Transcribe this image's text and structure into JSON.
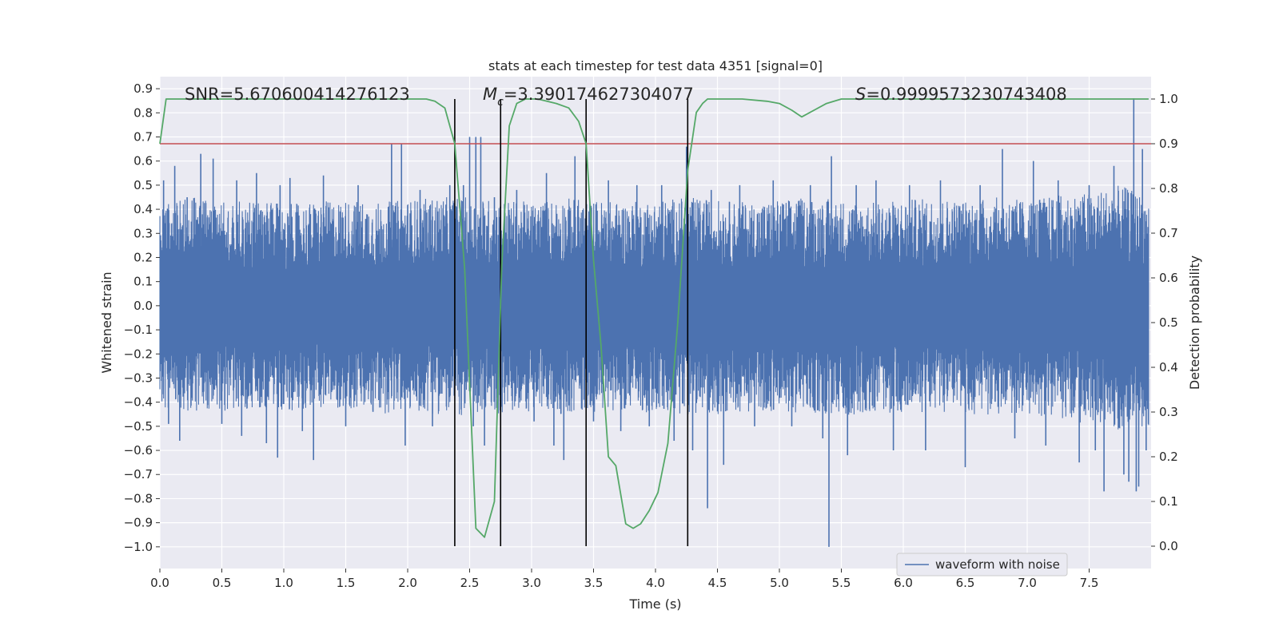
{
  "chart_data": {
    "type": "line",
    "title": "stats at each timestep for test data 4351 [signal=0]",
    "xlabel": "Time (s)",
    "ylabel": "Whitened strain",
    "y2label": "Detection probability",
    "xlim": [
      0.0,
      8.0
    ],
    "ylim": [
      -1.09,
      0.95
    ],
    "y2lim": [
      -0.05,
      1.05
    ],
    "x_ticks": [
      0.0,
      0.5,
      1.0,
      1.5,
      2.0,
      2.5,
      3.0,
      3.5,
      4.0,
      4.5,
      5.0,
      5.5,
      6.0,
      6.5,
      7.0,
      7.5
    ],
    "x_tick_labels": [
      "0.0",
      "0.5",
      "1.0",
      "1.5",
      "2.0",
      "2.5",
      "3.0",
      "3.5",
      "4.0",
      "4.5",
      "5.0",
      "5.5",
      "6.0",
      "6.5",
      "7.0",
      "7.5"
    ],
    "y_ticks": [
      0.9,
      0.8,
      0.7,
      0.6,
      0.5,
      0.4,
      0.3,
      0.2,
      0.1,
      0.0,
      -0.1,
      -0.2,
      -0.3,
      -0.4,
      -0.5,
      -0.6,
      -0.7,
      -0.8,
      -0.9,
      -1.0
    ],
    "y_tick_labels": [
      "0.9",
      "0.8",
      "0.7",
      "0.6",
      "0.5",
      "0.4",
      "0.3",
      "0.2",
      "0.1",
      "0.0",
      "−0.1",
      "−0.2",
      "−0.3",
      "−0.4",
      "−0.5",
      "−0.6",
      "−0.7",
      "−0.8",
      "−0.9",
      "−1.0"
    ],
    "y2_ticks": [
      1.0,
      0.9,
      0.8,
      0.7,
      0.6,
      0.5,
      0.4,
      0.3,
      0.2,
      0.1,
      0.0
    ],
    "y2_tick_labels": [
      "1.0",
      "0.9",
      "0.8",
      "0.7",
      "0.6",
      "0.5",
      "0.4",
      "0.3",
      "0.2",
      "0.1",
      "0.0"
    ],
    "annotations": {
      "snr": "SNR=5.670600414276123",
      "mc_symbol": "M",
      "mc_sub": "c",
      "mc_value": "=3.390174627304077",
      "s_symbol": "S",
      "s_value": "=0.9999573230743408"
    },
    "legend": {
      "label": "waveform with noise",
      "loc": "lower-right"
    },
    "threshold": {
      "y2": 0.9,
      "color": "#c44e52"
    },
    "vlines_x": [
      2.38,
      2.75,
      3.44,
      4.26
    ],
    "vline_y2_range": [
      0.0,
      1.0
    ],
    "series": [
      {
        "name": "waveform with noise",
        "axis": "y",
        "color": "#4c72b0",
        "envelope": [
          {
            "x": 0.0,
            "upper": 0.42,
            "lower": -0.42
          },
          {
            "x": 0.25,
            "upper": 0.45,
            "lower": -0.44
          },
          {
            "x": 0.5,
            "upper": 0.43,
            "lower": -0.45
          },
          {
            "x": 0.75,
            "upper": 0.44,
            "lower": -0.43
          },
          {
            "x": 1.0,
            "upper": 0.42,
            "lower": -0.44
          },
          {
            "x": 1.25,
            "upper": 0.43,
            "lower": -0.42
          },
          {
            "x": 1.5,
            "upper": 0.44,
            "lower": -0.43
          },
          {
            "x": 1.75,
            "upper": 0.43,
            "lower": -0.45
          },
          {
            "x": 2.0,
            "upper": 0.44,
            "lower": -0.44
          },
          {
            "x": 2.25,
            "upper": 0.45,
            "lower": -0.45
          },
          {
            "x": 2.5,
            "upper": 0.45,
            "lower": -0.46
          },
          {
            "x": 2.75,
            "upper": 0.44,
            "lower": -0.45
          },
          {
            "x": 3.0,
            "upper": 0.43,
            "lower": -0.44
          },
          {
            "x": 3.25,
            "upper": 0.45,
            "lower": -0.45
          },
          {
            "x": 3.5,
            "upper": 0.44,
            "lower": -0.44
          },
          {
            "x": 3.75,
            "upper": 0.43,
            "lower": -0.43
          },
          {
            "x": 4.0,
            "upper": 0.44,
            "lower": -0.45
          },
          {
            "x": 4.25,
            "upper": 0.45,
            "lower": -0.45
          },
          {
            "x": 4.5,
            "upper": 0.44,
            "lower": -0.45
          },
          {
            "x": 4.75,
            "upper": 0.43,
            "lower": -0.44
          },
          {
            "x": 5.0,
            "upper": 0.44,
            "lower": -0.44
          },
          {
            "x": 5.25,
            "upper": 0.45,
            "lower": -0.45
          },
          {
            "x": 5.5,
            "upper": 0.44,
            "lower": -0.46
          },
          {
            "x": 5.75,
            "upper": 0.43,
            "lower": -0.44
          },
          {
            "x": 6.0,
            "upper": 0.44,
            "lower": -0.45
          },
          {
            "x": 6.25,
            "upper": 0.45,
            "lower": -0.44
          },
          {
            "x": 6.5,
            "upper": 0.44,
            "lower": -0.45
          },
          {
            "x": 6.75,
            "upper": 0.45,
            "lower": -0.46
          },
          {
            "x": 7.0,
            "upper": 0.44,
            "lower": -0.45
          },
          {
            "x": 7.25,
            "upper": 0.46,
            "lower": -0.47
          },
          {
            "x": 7.5,
            "upper": 0.47,
            "lower": -0.49
          },
          {
            "x": 7.75,
            "upper": 0.5,
            "lower": -0.52
          },
          {
            "x": 7.98,
            "upper": 0.45,
            "lower": -0.5
          }
        ],
        "spikes": [
          {
            "x": 0.03,
            "y": 0.52
          },
          {
            "x": 0.07,
            "y": -0.49
          },
          {
            "x": 0.12,
            "y": 0.58
          },
          {
            "x": 0.16,
            "y": -0.56
          },
          {
            "x": 0.22,
            "y": 0.45
          },
          {
            "x": 0.33,
            "y": 0.63
          },
          {
            "x": 0.43,
            "y": 0.61
          },
          {
            "x": 0.5,
            "y": -0.49
          },
          {
            "x": 0.62,
            "y": 0.52
          },
          {
            "x": 0.66,
            "y": -0.54
          },
          {
            "x": 0.78,
            "y": 0.55
          },
          {
            "x": 0.86,
            "y": -0.57
          },
          {
            "x": 0.95,
            "y": -0.63
          },
          {
            "x": 0.97,
            "y": 0.5
          },
          {
            "x": 1.05,
            "y": 0.53
          },
          {
            "x": 1.15,
            "y": -0.52
          },
          {
            "x": 1.24,
            "y": -0.64
          },
          {
            "x": 1.32,
            "y": 0.54
          },
          {
            "x": 1.5,
            "y": -0.5
          },
          {
            "x": 1.6,
            "y": 0.5
          },
          {
            "x": 1.72,
            "y": -0.44
          },
          {
            "x": 1.87,
            "y": 0.67
          },
          {
            "x": 1.95,
            "y": 0.67
          },
          {
            "x": 1.98,
            "y": -0.58
          },
          {
            "x": 2.1,
            "y": 0.48
          },
          {
            "x": 2.2,
            "y": -0.5
          },
          {
            "x": 2.34,
            "y": 0.5
          },
          {
            "x": 2.45,
            "y": 0.5
          },
          {
            "x": 2.5,
            "y": 0.7
          },
          {
            "x": 2.53,
            "y": -0.5
          },
          {
            "x": 2.55,
            "y": 0.7
          },
          {
            "x": 2.59,
            "y": 0.7
          },
          {
            "x": 2.62,
            "y": -0.58
          },
          {
            "x": 2.7,
            "y": 0.45
          },
          {
            "x": 2.88,
            "y": 0.48
          },
          {
            "x": 3.02,
            "y": -0.48
          },
          {
            "x": 3.12,
            "y": 0.55
          },
          {
            "x": 3.18,
            "y": -0.58
          },
          {
            "x": 3.26,
            "y": -0.64
          },
          {
            "x": 3.35,
            "y": 0.62
          },
          {
            "x": 3.5,
            "y": -0.48
          },
          {
            "x": 3.62,
            "y": 0.52
          },
          {
            "x": 3.72,
            "y": -0.52
          },
          {
            "x": 3.85,
            "y": 0.5
          },
          {
            "x": 3.95,
            "y": -0.5
          },
          {
            "x": 4.05,
            "y": 0.5
          },
          {
            "x": 4.15,
            "y": -0.56
          },
          {
            "x": 4.25,
            "y": 0.66
          },
          {
            "x": 4.3,
            "y": -0.6
          },
          {
            "x": 4.42,
            "y": -0.84
          },
          {
            "x": 4.45,
            "y": 0.48
          },
          {
            "x": 4.55,
            "y": -0.66
          },
          {
            "x": 4.68,
            "y": 0.5
          },
          {
            "x": 4.8,
            "y": -0.5
          },
          {
            "x": 4.95,
            "y": 0.52
          },
          {
            "x": 5.1,
            "y": -0.5
          },
          {
            "x": 5.25,
            "y": 0.5
          },
          {
            "x": 5.35,
            "y": -0.55
          },
          {
            "x": 5.4,
            "y": -1.0
          },
          {
            "x": 5.42,
            "y": 0.62
          },
          {
            "x": 5.55,
            "y": -0.62
          },
          {
            "x": 5.62,
            "y": 0.5
          },
          {
            "x": 5.78,
            "y": 0.52
          },
          {
            "x": 5.92,
            "y": -0.6
          },
          {
            "x": 6.05,
            "y": 0.5
          },
          {
            "x": 6.18,
            "y": -0.6
          },
          {
            "x": 6.3,
            "y": 0.52
          },
          {
            "x": 6.5,
            "y": -0.67
          },
          {
            "x": 6.62,
            "y": 0.5
          },
          {
            "x": 6.8,
            "y": 0.65
          },
          {
            "x": 6.9,
            "y": -0.55
          },
          {
            "x": 7.05,
            "y": 0.6
          },
          {
            "x": 7.15,
            "y": -0.58
          },
          {
            "x": 7.25,
            "y": 0.52
          },
          {
            "x": 7.42,
            "y": -0.65
          },
          {
            "x": 7.5,
            "y": 0.5
          },
          {
            "x": 7.55,
            "y": -0.6
          },
          {
            "x": 7.62,
            "y": -0.77
          },
          {
            "x": 7.7,
            "y": 0.58
          },
          {
            "x": 7.78,
            "y": -0.7
          },
          {
            "x": 7.82,
            "y": -0.73
          },
          {
            "x": 7.86,
            "y": 0.86
          },
          {
            "x": 7.88,
            "y": -0.77
          },
          {
            "x": 7.9,
            "y": -0.75
          },
          {
            "x": 7.93,
            "y": 0.65
          },
          {
            "x": 7.96,
            "y": -0.6
          }
        ]
      },
      {
        "name": "detection probability",
        "axis": "y2",
        "color": "#55a868",
        "x": [
          0.0,
          0.05,
          0.1,
          0.5,
          1.0,
          1.5,
          2.0,
          2.15,
          2.22,
          2.3,
          2.38,
          2.46,
          2.55,
          2.62,
          2.7,
          2.76,
          2.82,
          2.88,
          2.95,
          3.05,
          3.2,
          3.3,
          3.38,
          3.44,
          3.5,
          3.56,
          3.62,
          3.68,
          3.76,
          3.82,
          3.88,
          3.95,
          4.02,
          4.1,
          4.18,
          4.26,
          4.33,
          4.38,
          4.42,
          4.5,
          4.7,
          4.9,
          5.0,
          5.1,
          5.18,
          5.28,
          5.38,
          5.5,
          5.7,
          6.0,
          7.0,
          7.98
        ],
        "y": [
          0.9,
          1.0,
          1.0,
          1.0,
          1.0,
          1.0,
          1.0,
          1.0,
          0.995,
          0.98,
          0.9,
          0.62,
          0.04,
          0.02,
          0.1,
          0.63,
          0.94,
          0.99,
          1.0,
          1.0,
          0.99,
          0.98,
          0.95,
          0.9,
          0.64,
          0.45,
          0.2,
          0.18,
          0.05,
          0.04,
          0.05,
          0.08,
          0.12,
          0.23,
          0.5,
          0.84,
          0.97,
          0.99,
          1.0,
          1.0,
          1.0,
          0.995,
          0.99,
          0.975,
          0.96,
          0.975,
          0.99,
          1.0,
          1.0,
          1.0,
          1.0,
          1.0
        ]
      }
    ]
  }
}
